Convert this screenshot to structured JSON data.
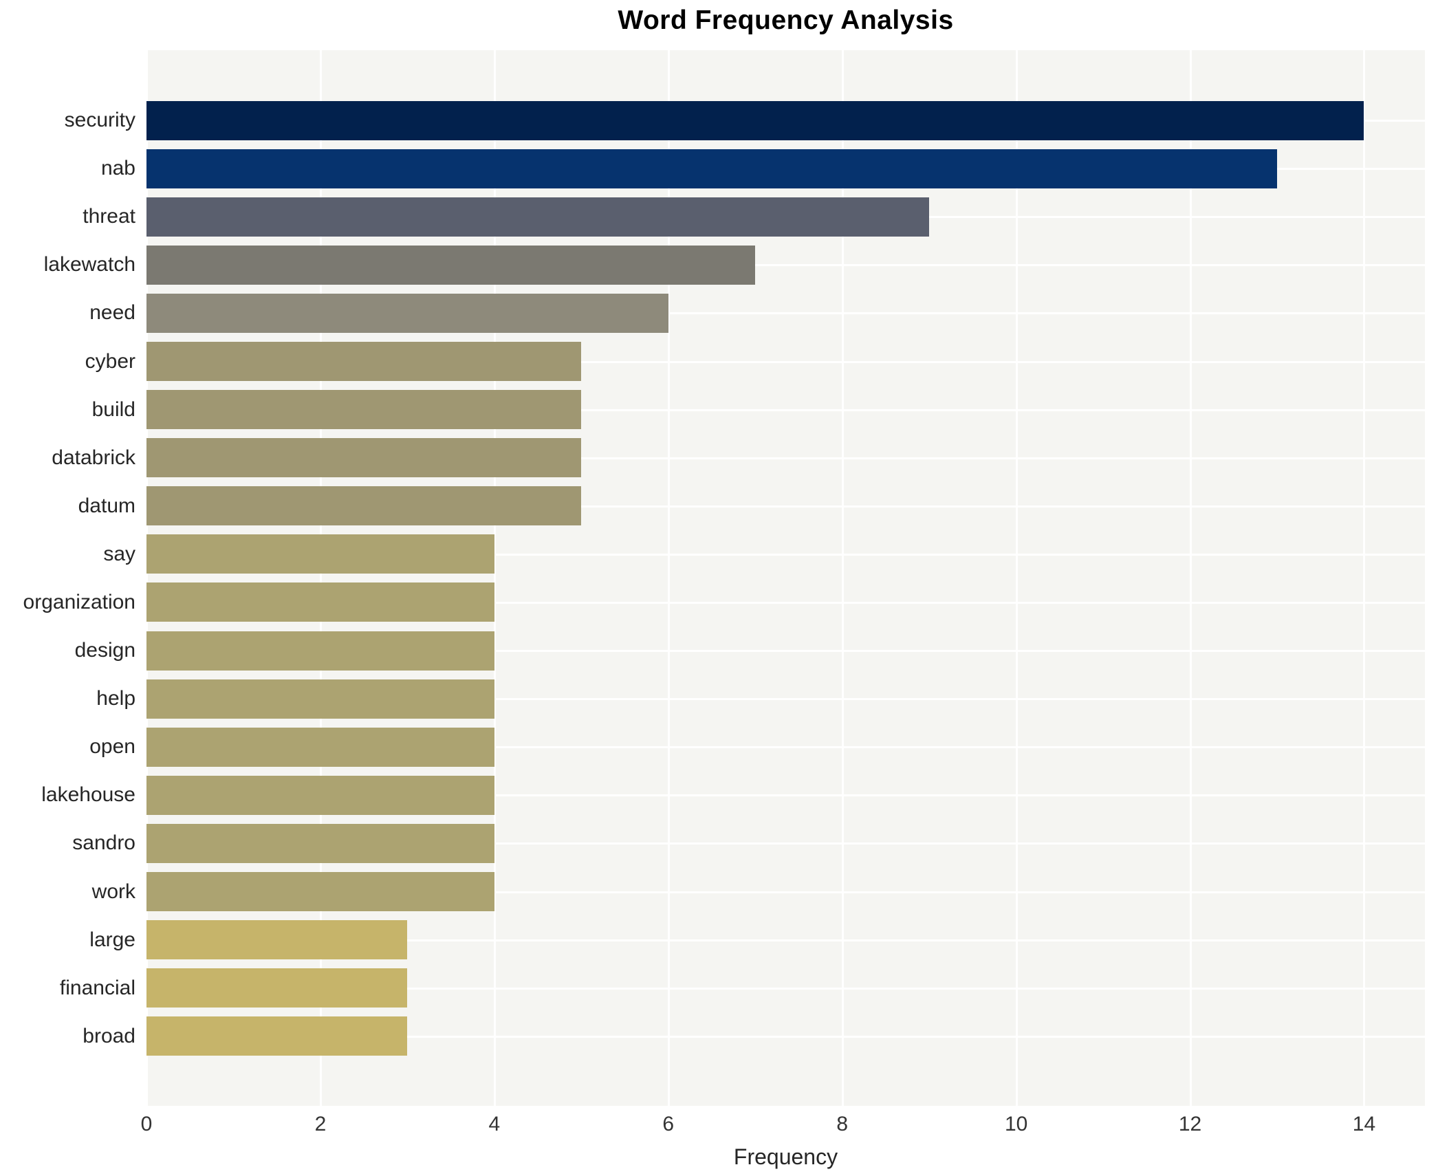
{
  "chart": {
    "title": "Word Frequency Analysis",
    "xlabel": "Frequency"
  },
  "colors": {
    "plot_background": "#f5f5f2",
    "gridline": "#ffffff",
    "title_text": "#000000",
    "label_text": "#262626",
    "tick_text": "#333333"
  },
  "chart_data": {
    "type": "bar",
    "orientation": "horizontal",
    "title": "Word Frequency Analysis",
    "xlabel": "Frequency",
    "ylabel": "",
    "categories": [
      "security",
      "nab",
      "threat",
      "lakewatch",
      "need",
      "cyber",
      "build",
      "databrick",
      "datum",
      "say",
      "organization",
      "design",
      "help",
      "open",
      "lakehouse",
      "sandro",
      "work",
      "large",
      "financial",
      "broad"
    ],
    "values": [
      14,
      13,
      9,
      7,
      6,
      5,
      5,
      5,
      5,
      4,
      4,
      4,
      4,
      4,
      4,
      4,
      4,
      3,
      3,
      3
    ],
    "bar_colors": [
      "#02214d",
      "#06336e",
      "#5a5f6e",
      "#7b7971",
      "#8e8a7b",
      "#9f9772",
      "#9f9772",
      "#9f9772",
      "#9f9772",
      "#aca371",
      "#aca371",
      "#aca371",
      "#aca371",
      "#aca371",
      "#aca371",
      "#aca371",
      "#aca371",
      "#c6b46a",
      "#c6b46a",
      "#c6b46a"
    ],
    "xlim": [
      0,
      14.7
    ],
    "xticks": [
      0,
      2,
      4,
      6,
      8,
      10,
      12,
      14
    ],
    "grid": true,
    "legend": false
  }
}
